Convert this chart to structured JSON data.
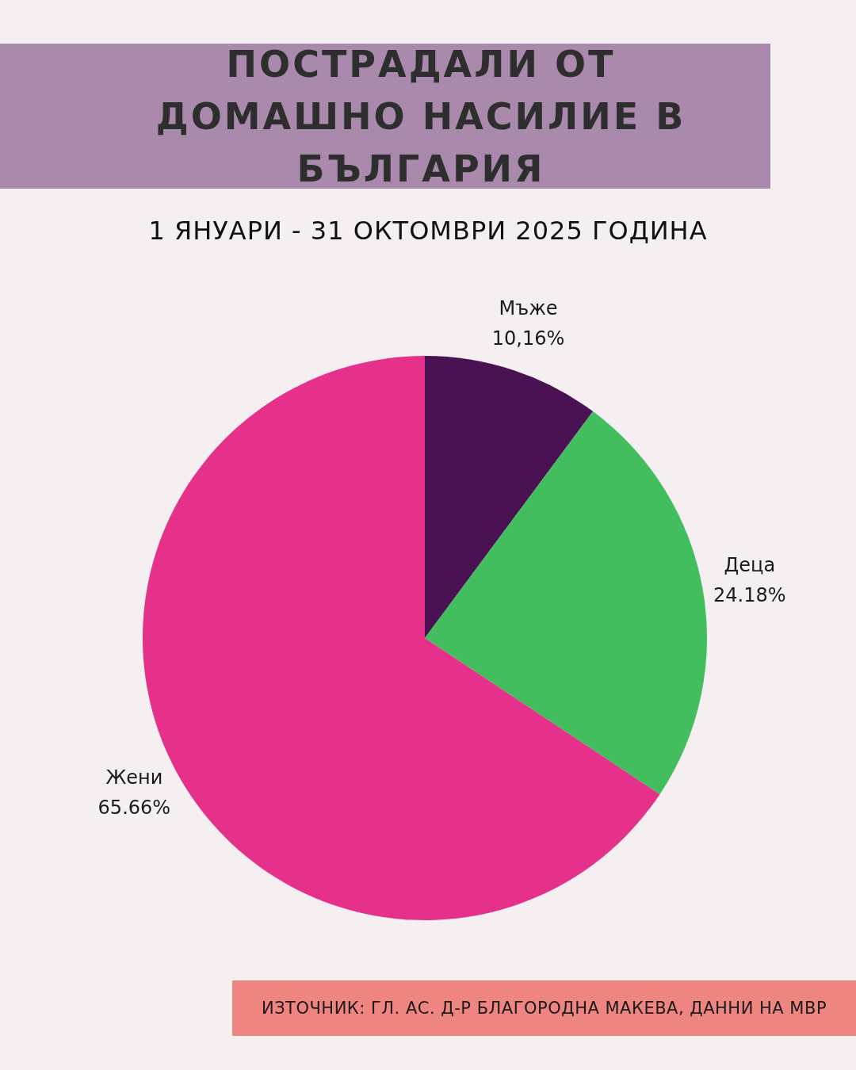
{
  "chart_data": {
    "type": "pie",
    "title": "ПОСТРАДАЛИ ОТ ДОМАШНО НАСИЛИЕ В БЪЛГАРИЯ",
    "subtitle": "1 ЯНУАРИ - 31 ОКТОМВРИ 2025 ГОДИНА",
    "categories": [
      "Мъже",
      "Деца",
      "Жени"
    ],
    "values": [
      10.16,
      24.18,
      65.66
    ],
    "value_labels": [
      "10,16%",
      "24.18%",
      "65.66%"
    ],
    "colors": [
      "#4a1252",
      "#43be5e",
      "#e5318a"
    ],
    "legend": false,
    "annotations": [
      "ИЗТОЧНИК: ГЛ. АС. Д-Р БЛАГОРОДНА МАКЕВА, ДАННИ НА МВР"
    ]
  }
}
